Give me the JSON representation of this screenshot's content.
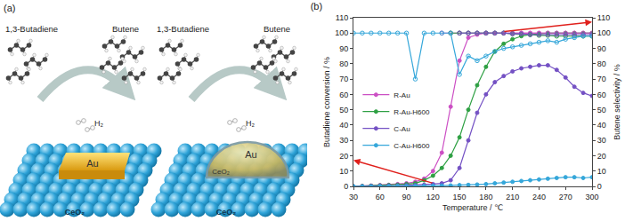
{
  "panel_a": {
    "label": "(a)",
    "scenes": [
      {
        "reactant": "1,3-Butadiene",
        "product": "Butene",
        "gas": "H₂",
        "metal": "Au",
        "support": "CeO₂"
      },
      {
        "reactant": "1,3-Butadiene",
        "product": "Butene",
        "gas": "H₂",
        "metal": "Au",
        "overlayer": "CeO₂",
        "support": "CeO₂"
      }
    ]
  },
  "chart_data": {
    "type": "line",
    "title": "(b)",
    "xlabel": "Temperature / ℃",
    "ylabel": "Butadiene conversion / %",
    "y2label": "Butene selectivity / %",
    "x": [
      30,
      40,
      50,
      60,
      70,
      80,
      90,
      100,
      110,
      120,
      130,
      140,
      150,
      160,
      170,
      180,
      190,
      200,
      210,
      220,
      230,
      240,
      250,
      260,
      270,
      280,
      290,
      300
    ],
    "xlim": [
      30,
      300
    ],
    "xticks": [
      30,
      60,
      90,
      120,
      150,
      180,
      210,
      240,
      270,
      300
    ],
    "ylim": [
      0,
      110
    ],
    "yticks": [
      0,
      10,
      20,
      30,
      40,
      50,
      60,
      70,
      80,
      90,
      100,
      110
    ],
    "y2lim": [
      0,
      110
    ],
    "y2ticks": [
      0,
      10,
      20,
      30,
      40,
      50,
      60,
      70,
      80,
      90,
      100,
      110
    ],
    "grid": false,
    "legend": "upper left",
    "series": [
      {
        "name": "R-Au",
        "color": "#cc4fc4",
        "marker": "filled",
        "values": [
          0,
          0.3,
          0.5,
          0.8,
          1,
          1.5,
          2,
          3,
          5,
          10,
          22,
          52,
          82,
          97,
          99,
          100,
          100,
          100,
          100,
          100,
          100,
          100,
          100,
          100,
          100,
          100,
          100,
          100
        ]
      },
      {
        "name": "R-Au-H600",
        "color": "#2ea043",
        "marker": "filled",
        "values": [
          0,
          0.2,
          0.4,
          0.6,
          0.8,
          1,
          1.5,
          2,
          4,
          7,
          12,
          20,
          32,
          50,
          66,
          78,
          88,
          93,
          96,
          98,
          99,
          99.5,
          100,
          100,
          100,
          100,
          100,
          100
        ]
      },
      {
        "name": "C-Au",
        "color": "#7451c4",
        "marker": "filled",
        "values": [
          0,
          0,
          0.2,
          0.3,
          0.4,
          0.5,
          0.7,
          0.8,
          1,
          1.5,
          2,
          4,
          12,
          30,
          48,
          60,
          68,
          72,
          75,
          77,
          78,
          79,
          79,
          76,
          71,
          65,
          61,
          59
        ]
      },
      {
        "name": "C-Au-H600",
        "color": "#35a7da",
        "marker": "filled",
        "values": [
          0,
          0,
          0,
          0.1,
          0.1,
          0.2,
          0.2,
          0.3,
          0.3,
          0.4,
          0.5,
          0.6,
          0.8,
          1,
          1.2,
          1.5,
          2,
          2.5,
          3,
          3.5,
          4,
          4.5,
          5,
          5.5,
          6,
          6,
          5.5,
          6
        ]
      },
      {
        "name": "R-Au",
        "color": "#cc4fc4",
        "marker": "open",
        "axis": "y2",
        "values": [
          null,
          null,
          null,
          null,
          null,
          null,
          null,
          null,
          null,
          null,
          100,
          100,
          100,
          100,
          100,
          100,
          100,
          100,
          100,
          100,
          100,
          100,
          100,
          100,
          100,
          100,
          100,
          100
        ]
      },
      {
        "name": "R-Au-H600",
        "color": "#2ea043",
        "marker": "open",
        "axis": "y2",
        "values": [
          null,
          null,
          null,
          null,
          null,
          null,
          null,
          null,
          null,
          null,
          null,
          100,
          100,
          100,
          100,
          100,
          100,
          100,
          99.5,
          99,
          99,
          98.5,
          98.5,
          98,
          98,
          98,
          98,
          98
        ]
      },
      {
        "name": "C-Au",
        "color": "#7451c4",
        "marker": "open",
        "axis": "y2",
        "values": [
          null,
          null,
          null,
          null,
          null,
          null,
          null,
          null,
          null,
          null,
          null,
          null,
          100,
          100,
          100,
          100,
          100,
          100,
          99.5,
          99.5,
          99,
          99,
          99,
          99,
          99,
          99,
          99,
          99
        ]
      },
      {
        "name": "C-Au-H600",
        "color": "#35a7da",
        "marker": "open",
        "axis": "y2",
        "values": [
          100,
          100,
          100,
          100,
          100,
          100,
          100,
          70,
          100,
          100,
          100,
          100,
          73,
          85,
          82,
          85,
          88,
          90,
          91,
          92,
          93,
          94,
          95,
          94,
          96,
          97,
          98,
          98
        ]
      }
    ]
  }
}
